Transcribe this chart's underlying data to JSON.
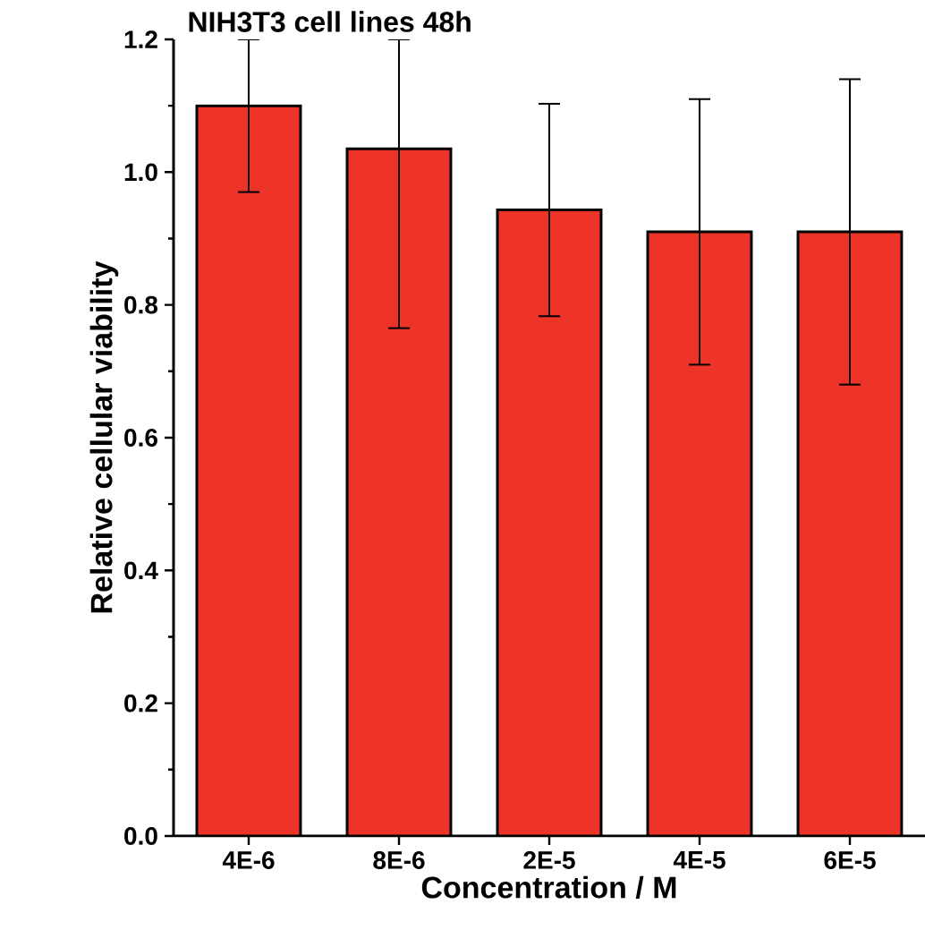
{
  "chart_data": {
    "type": "bar",
    "title": "NIH3T3 cell lines 48h",
    "xlabel": "Concentration / M",
    "ylabel": "Relative cellular viability",
    "categories": [
      "4E-6",
      "8E-6",
      "2E-5",
      "4E-5",
      "6E-5"
    ],
    "values": [
      1.1,
      1.035,
      0.943,
      0.91,
      0.91
    ],
    "errors": [
      [
        0.97,
        1.2
      ],
      [
        0.765,
        1.2
      ],
      0.16,
      0.2,
      0.23
    ],
    "color": "#ee3329",
    "ylim": [
      0,
      1.2
    ],
    "yticks": [
      {
        "value": 0,
        "label": "0.0"
      },
      0.2,
      0.4,
      0.6,
      0.8,
      {
        "value": 1,
        "label": "1.0"
      },
      1.2
    ],
    "grid": false
  }
}
